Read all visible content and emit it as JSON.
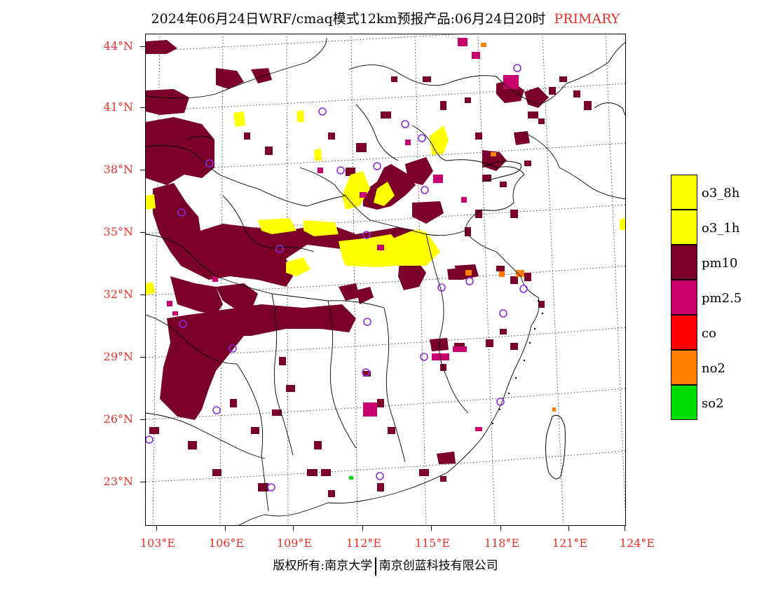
{
  "header": {
    "title": "2024年06月24日WRF/cmaq模式12km预报产品:06月24日20时",
    "tag": "PRIMARY"
  },
  "map": {
    "lat_labels": [
      "44°N",
      "41°N",
      "38°N",
      "35°N",
      "32°N",
      "29°N",
      "26°N",
      "23°N"
    ],
    "lon_labels": [
      "103°E",
      "106°E",
      "109°E",
      "112°E",
      "115°E",
      "118°E",
      "121°E",
      "124°E"
    ],
    "category_colors": {
      "o3_8h": "#ffff00",
      "o3_1h": "#ffff00",
      "pm10": "#7b0028",
      "pm2.5": "#c8006e",
      "co": "#ff0000",
      "no2": "#ff7f00",
      "so2": "#00dd00"
    },
    "station_marker_color": "#8a2be2",
    "coastline_color": "#000000"
  },
  "legend": {
    "items": [
      {
        "label": "o3_8h",
        "color": "#ffff00"
      },
      {
        "label": "o3_1h",
        "color": "#ffff00"
      },
      {
        "label": "pm10",
        "color": "#7b0028"
      },
      {
        "label": "pm2.5",
        "color": "#c8006e"
      },
      {
        "label": "co",
        "color": "#ff0000"
      },
      {
        "label": "no2",
        "color": "#ff7f00"
      },
      {
        "label": "so2",
        "color": "#00dd00"
      }
    ]
  },
  "footer": {
    "left": "版权所有:南京大学",
    "right": "南京创蓝科技有限公司"
  }
}
